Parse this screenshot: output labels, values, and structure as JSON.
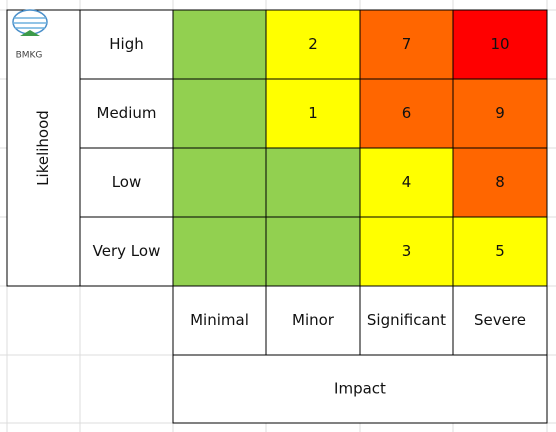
{
  "logo": {
    "text": "BMKG"
  },
  "y_axis_title": "Likelihood",
  "x_axis_title": "Impact",
  "columns": [
    "Minimal",
    "Minor",
    "Significant",
    "Severe"
  ],
  "rows": [
    {
      "label": "High",
      "cells": [
        {
          "value": null,
          "color": "#92d050"
        },
        {
          "value": 2,
          "color": "#ffff00"
        },
        {
          "value": 7,
          "color": "#ff6600"
        },
        {
          "value": 10,
          "color": "#ff0000"
        }
      ]
    },
    {
      "label": "Medium",
      "cells": [
        {
          "value": null,
          "color": "#92d050"
        },
        {
          "value": 1,
          "color": "#ffff00"
        },
        {
          "value": 6,
          "color": "#ff6600"
        },
        {
          "value": 9,
          "color": "#ff6600"
        }
      ]
    },
    {
      "label": "Low",
      "cells": [
        {
          "value": null,
          "color": "#92d050"
        },
        {
          "value": null,
          "color": "#92d050"
        },
        {
          "value": 4,
          "color": "#ffff00"
        },
        {
          "value": 8,
          "color": "#ff6600"
        }
      ]
    },
    {
      "label": "Very Low",
      "cells": [
        {
          "value": null,
          "color": "#92d050"
        },
        {
          "value": null,
          "color": "#92d050"
        },
        {
          "value": 3,
          "color": "#ffff00"
        },
        {
          "value": 5,
          "color": "#ffff00"
        }
      ]
    }
  ]
}
